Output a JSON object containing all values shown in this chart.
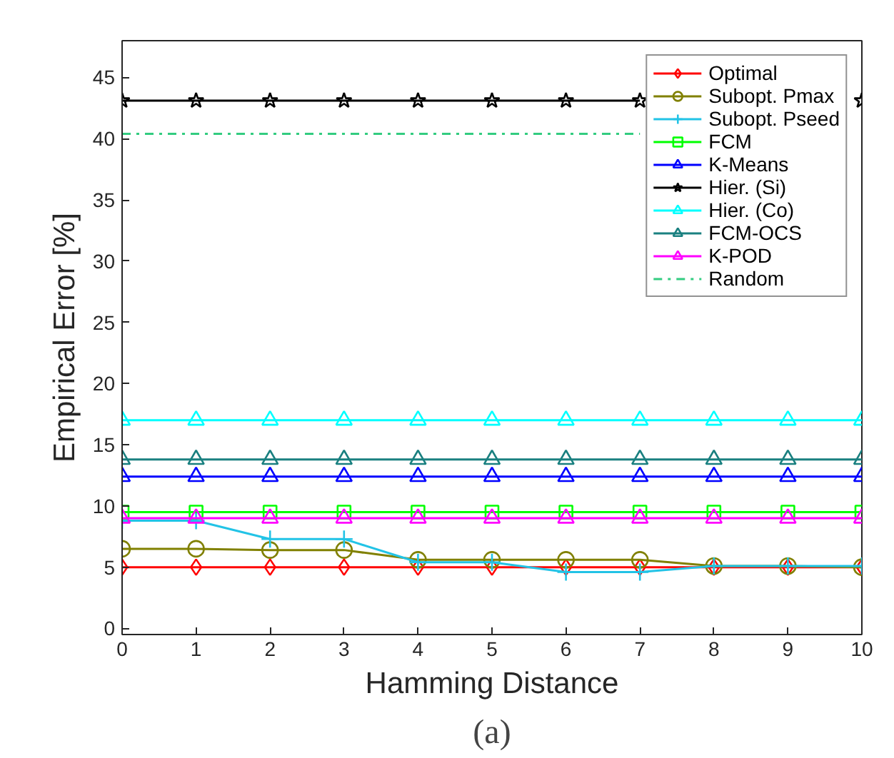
{
  "chart_data": {
    "type": "line",
    "xlabel": "Hamming Distance",
    "ylabel": "Empirical Error [%]",
    "x": [
      0,
      1,
      2,
      3,
      4,
      5,
      6,
      7,
      8,
      9,
      10
    ],
    "xlim": [
      0,
      10
    ],
    "xticks": [
      0,
      1,
      2,
      3,
      4,
      5,
      6,
      7,
      8,
      9,
      10
    ],
    "ylim": [
      -0.5,
      48
    ],
    "yticks": [
      0,
      5,
      10,
      15,
      20,
      25,
      30,
      35,
      40,
      45
    ],
    "grid": false,
    "legend": "top right",
    "annotations": [
      "(a)"
    ],
    "series": [
      {
        "name": "Optimal",
        "color": "#ff0000",
        "marker": "diamond",
        "values": [
          5,
          5,
          5,
          5,
          5,
          5,
          5,
          5,
          5,
          5,
          5
        ]
      },
      {
        "name": "Subopt. Pmax",
        "color": "#808000",
        "marker": "circle",
        "values": [
          6.5,
          6.5,
          6.4,
          6.4,
          5.6,
          5.6,
          5.6,
          5.6,
          5.1,
          5.1,
          5.0
        ]
      },
      {
        "name": "Subopt. Pseed",
        "color": "#22c3e6",
        "marker": "cross",
        "values": [
          8.8,
          8.8,
          7.3,
          7.3,
          5.4,
          5.4,
          4.6,
          4.6,
          5.1,
          5.1,
          5.1
        ]
      },
      {
        "name": "FCM",
        "color": "#00ff00",
        "marker": "square",
        "values": [
          9.5,
          9.5,
          9.5,
          9.5,
          9.5,
          9.5,
          9.5,
          9.5,
          9.5,
          9.5,
          9.5
        ]
      },
      {
        "name": "K-Means",
        "color": "#0000ff",
        "marker": "triangle",
        "values": [
          12.4,
          12.4,
          12.4,
          12.4,
          12.4,
          12.4,
          12.4,
          12.4,
          12.4,
          12.4,
          12.4
        ]
      },
      {
        "name": "Hier. (Si)",
        "color": "#000000",
        "marker": "star",
        "values": [
          43.1,
          43.1,
          43.1,
          43.1,
          43.1,
          43.1,
          43.1,
          43.1,
          null,
          null,
          43.1
        ]
      },
      {
        "name": "Hier. (Co)",
        "color": "#00ffff",
        "marker": "triangle",
        "values": [
          17,
          17,
          17,
          17,
          17,
          17,
          17,
          17,
          17,
          17,
          17
        ]
      },
      {
        "name": "FCM-OCS",
        "color": "#1a8080",
        "marker": "triangle",
        "values": [
          13.8,
          13.8,
          13.8,
          13.8,
          13.8,
          13.8,
          13.8,
          13.8,
          13.8,
          13.8,
          13.8
        ]
      },
      {
        "name": "K-POD",
        "color": "#ff00ff",
        "marker": "triangle",
        "values": [
          9,
          9,
          9,
          9,
          9,
          9,
          9,
          9,
          9,
          9,
          9
        ]
      },
      {
        "name": "Random",
        "color": "#33cc80",
        "marker": "none",
        "line_style": "dashdot",
        "values": [
          40.4,
          40.4,
          40.4,
          40.4,
          40.4,
          40.4,
          40.4,
          40.4,
          null,
          null,
          null
        ]
      }
    ]
  }
}
